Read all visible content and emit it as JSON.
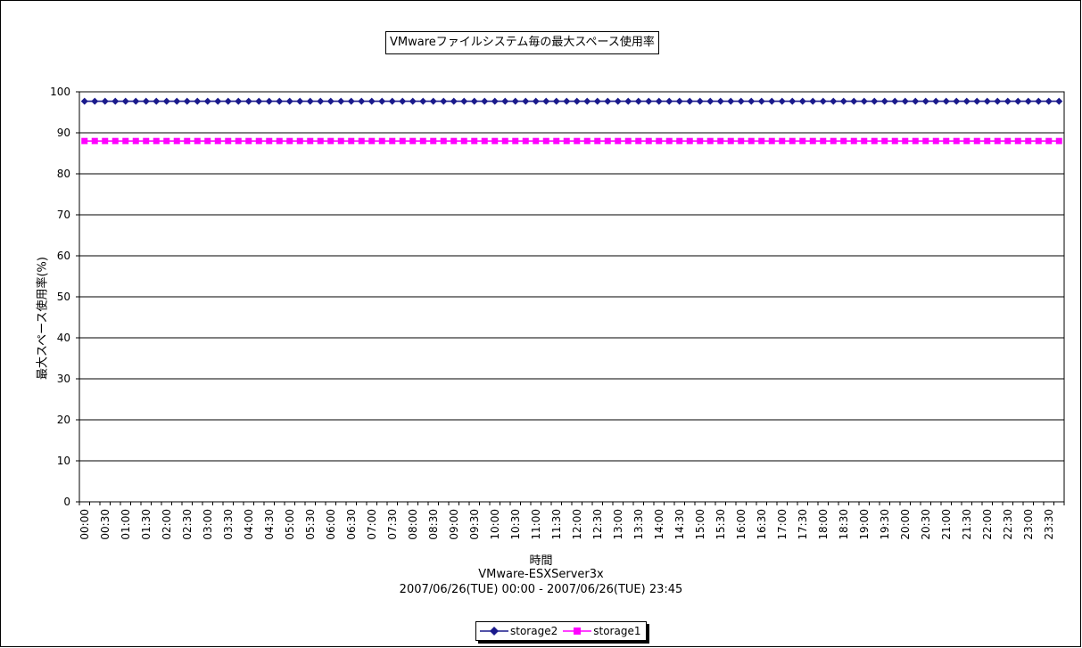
{
  "chart_data": {
    "type": "line",
    "title": "VMwareファイルシステム毎の最大スペース使用率",
    "xlabel": "時間",
    "ylabel": "最大スペース使用率(%)",
    "subtitle_lines": [
      "VMware-ESXServer3x",
      "2007/06/26(TUE) 00:00 - 2007/06/26(TUE) 23:45"
    ],
    "ylim": [
      0,
      100
    ],
    "yticks": [
      0,
      10,
      20,
      30,
      40,
      50,
      60,
      70,
      80,
      90,
      100
    ],
    "xtick_labels": [
      "00:00",
      "00:30",
      "01:00",
      "01:30",
      "02:00",
      "02:30",
      "03:00",
      "03:30",
      "04:00",
      "04:30",
      "05:00",
      "05:30",
      "06:00",
      "06:30",
      "07:00",
      "07:30",
      "08:00",
      "08:30",
      "09:00",
      "09:30",
      "10:00",
      "10:30",
      "11:00",
      "11:30",
      "12:00",
      "12:30",
      "13:00",
      "13:30",
      "14:00",
      "14:30",
      "15:00",
      "15:30",
      "16:00",
      "16:30",
      "17:00",
      "17:30",
      "18:00",
      "18:30",
      "19:00",
      "19:30",
      "20:00",
      "20:30",
      "21:00",
      "21:30",
      "22:00",
      "22:30",
      "23:00",
      "23:30"
    ],
    "x_start": "00:00",
    "x_end": "23:45",
    "x_interval_minutes": 15,
    "grid": "horizontal",
    "legend_position": "bottom",
    "series": [
      {
        "name": "storage2",
        "value": 97.7,
        "color": "#1a1a8c",
        "marker": "diamond"
      },
      {
        "name": "storage1",
        "value": 88.0,
        "color": "#ff00ff",
        "marker": "square"
      }
    ]
  }
}
